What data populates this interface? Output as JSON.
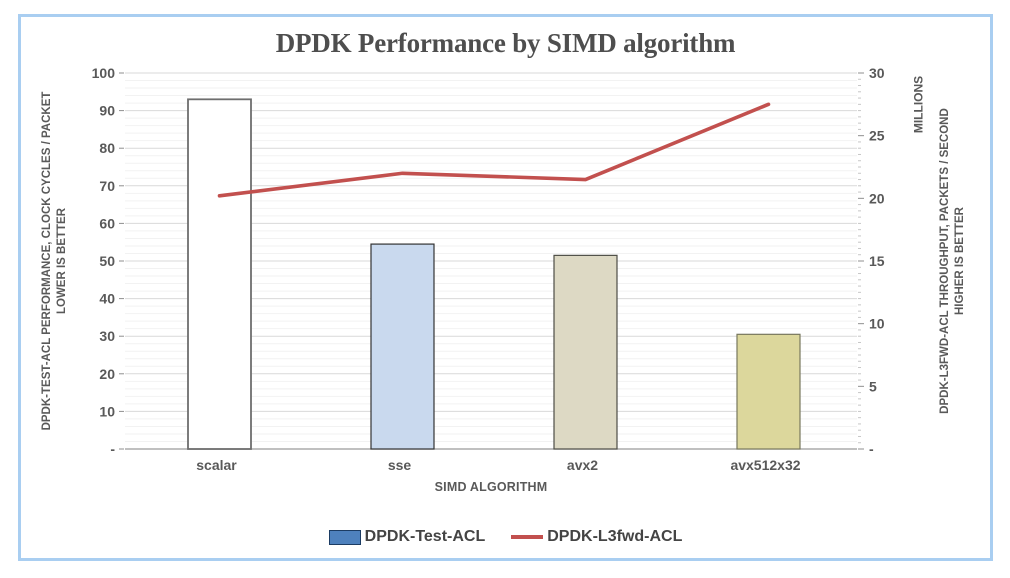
{
  "title": "DPDK Performance by SIMD algorithm",
  "chart_data": {
    "type": "bar",
    "subtype": "combo-bar-line-dual-axis",
    "title": "DPDK Performance by SIMD algorithm",
    "categories": [
      "scalar",
      "sse",
      "avx2",
      "avx512x32"
    ],
    "xlabel": "SIMD ALGORITHM",
    "grid": "on",
    "legend_position": "bottom",
    "series": [
      {
        "name": "DPDK-Test-ACL",
        "type": "bar",
        "axis": "left",
        "values": [
          93,
          54.5,
          51.5,
          30.5
        ],
        "point_fills": [
          "#ffffff",
          "#c9d9ee",
          "#ddd9c4",
          "#dcd79c"
        ],
        "point_strokes": [
          "#6e6e6e",
          "#333333",
          "#4d4d45",
          "#77775e"
        ]
      },
      {
        "name": "DPDK-L3fwd-ACL",
        "type": "line",
        "axis": "right",
        "values": [
          20.2,
          22.0,
          21.5,
          27.5
        ],
        "color": "#c2504e"
      }
    ],
    "left_axis": {
      "title_line1": "DPDK-TEST-ACL PERFORMANCE, CLOCK CYCLES / PACKET",
      "title_line2": "LOWER IS BETTER",
      "min": 0,
      "max": 100,
      "tick_step": 10,
      "tick_labels": [
        "100",
        "90",
        "80",
        "70",
        "60",
        "50",
        "40",
        "30",
        "20",
        "10",
        "-"
      ]
    },
    "right_axis": {
      "title_line1": "DPDK-L3FWD-ACL THROUGHPUT, PACKETS / SECOND",
      "title_line2": "HIGHER IS BETTER",
      "units_label": "MILLIONS",
      "min": 0,
      "max": 30,
      "tick_step": 5,
      "tick_labels": [
        "30",
        "25",
        "20",
        "15",
        "10",
        "5",
        "-"
      ]
    },
    "legend": [
      {
        "label": "DPDK-Test-ACL",
        "swatch": "bar",
        "color": "#4e81bd"
      },
      {
        "label": "DPDK-L3fwd-ACL",
        "swatch": "line",
        "color": "#c2504e"
      }
    ],
    "colors": {
      "grid_major": "#d9d9d9",
      "grid_minor": "#f2f2f2",
      "axis_line": "#9b9b9b",
      "tick_text": "#595959",
      "frame_border": "#a9cef1",
      "title_text": "#4e4e4e"
    }
  }
}
